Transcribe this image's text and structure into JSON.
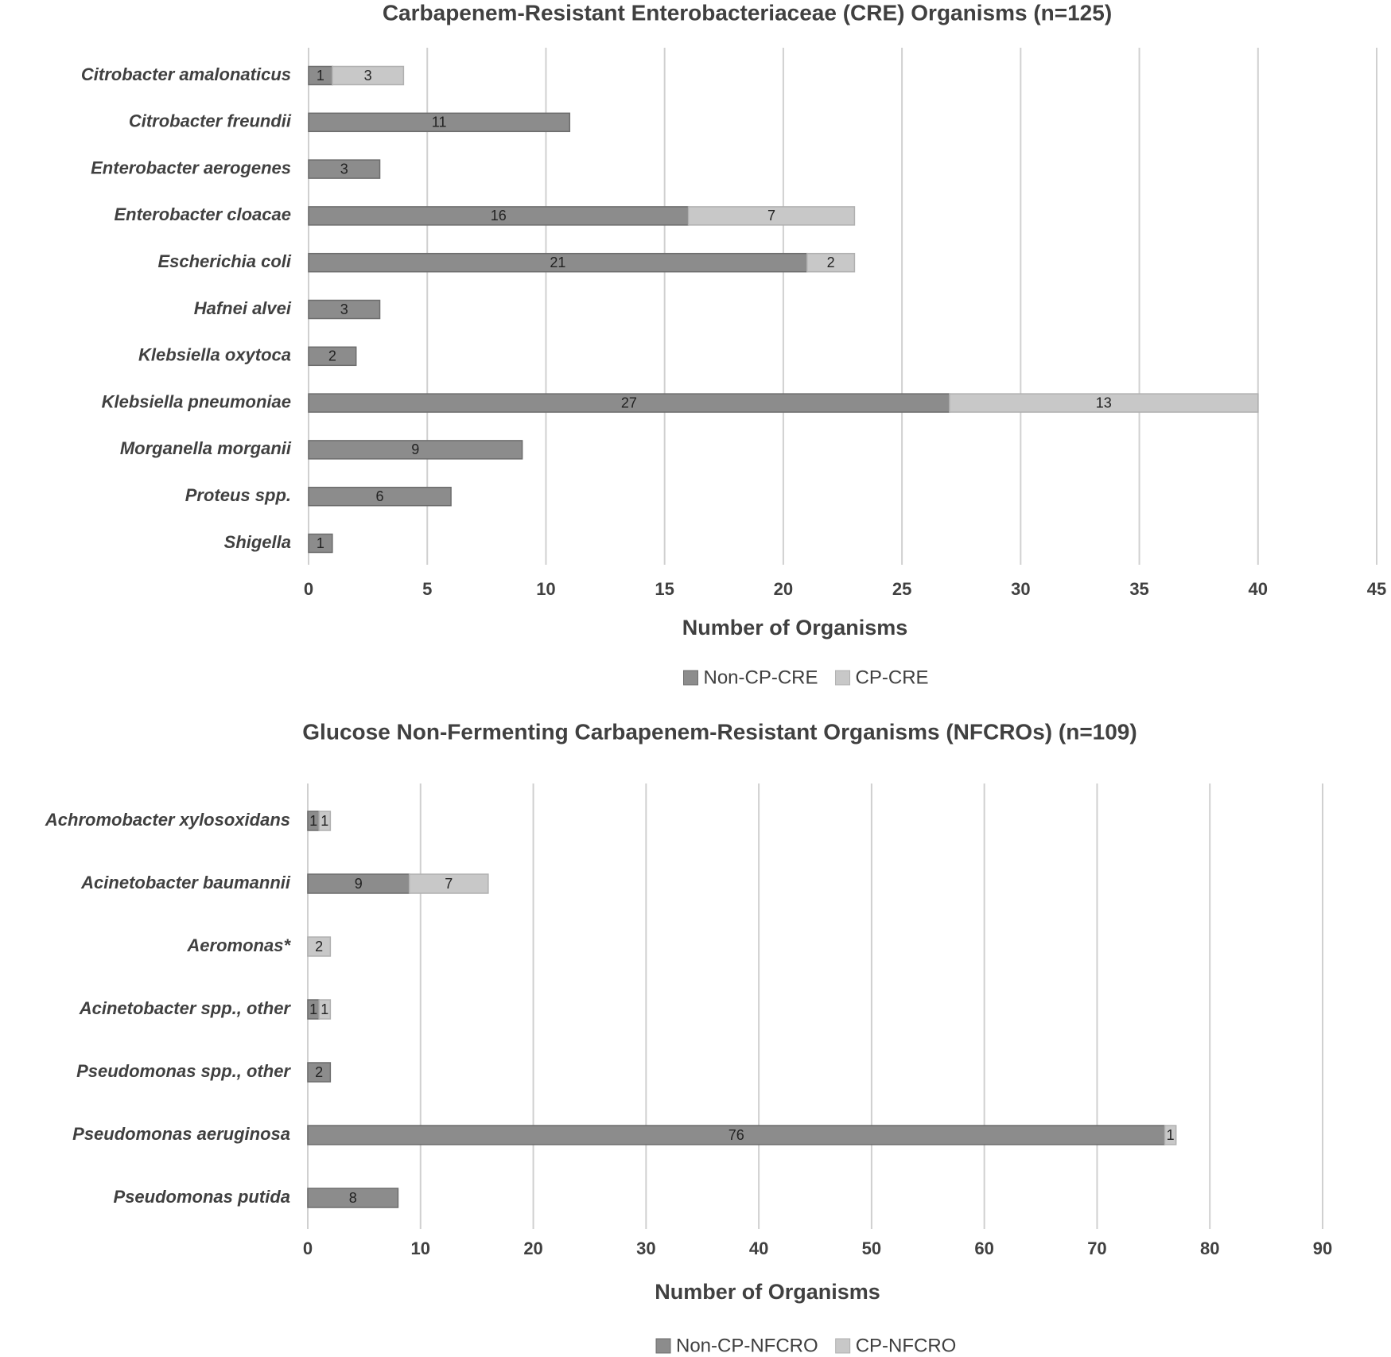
{
  "chart_data": [
    {
      "type": "bar",
      "orientation": "horizontal",
      "stacked": true,
      "title": "Carbapenem-Resistant Enterobacteriaceae (CRE) Organisms (n=125)",
      "categories": [
        "Citrobacter amalonaticus",
        "Citrobacter freundii",
        "Enterobacter aerogenes",
        "Enterobacter cloacae",
        "Escherichia coli",
        "Hafnei alvei",
        "Klebsiella oxytoca",
        "Klebsiella pneumoniae",
        "Morganella morganii",
        "Proteus spp.",
        "Shigella"
      ],
      "series": [
        {
          "name": "Non-CP-CRE",
          "color": "#8c8c8c",
          "values": [
            1,
            11,
            3,
            16,
            21,
            3,
            2,
            27,
            9,
            6,
            1
          ]
        },
        {
          "name": "CP-CRE",
          "color": "#c8c8c8",
          "values": [
            3,
            null,
            null,
            7,
            2,
            null,
            null,
            13,
            null,
            null,
            null
          ]
        }
      ],
      "xlim": [
        0,
        45
      ],
      "xticks": [
        0,
        5,
        10,
        15,
        20,
        25,
        30,
        35,
        40,
        45
      ],
      "x_label": "Number of Organisms",
      "grid": true,
      "legend": "bottom"
    },
    {
      "type": "bar",
      "orientation": "horizontal",
      "stacked": true,
      "title": "Glucose Non-Fermenting Carbapenem-Resistant Organisms (NFCROs) (n=109)",
      "categories": [
        "Achromobacter xylosoxidans",
        "Acinetobacter baumannii",
        "Aeromonas*",
        "Acinetobacter spp., other",
        "Pseudomonas spp., other",
        "Pseudomonas aeruginosa",
        "Pseudomonas putida"
      ],
      "series": [
        {
          "name": "Non-CP-NFCRO",
          "color": "#8c8c8c",
          "values": [
            1,
            9,
            null,
            1,
            2,
            76,
            8
          ]
        },
        {
          "name": "CP-NFCRO",
          "color": "#c8c8c8",
          "values": [
            1,
            7,
            2,
            1,
            null,
            1,
            null
          ]
        }
      ],
      "xlim": [
        0,
        90
      ],
      "xticks": [
        0,
        10,
        20,
        30,
        40,
        50,
        60,
        70,
        80,
        90
      ],
      "x_label": "Number of Organisms",
      "grid": true,
      "legend": "bottom"
    }
  ]
}
